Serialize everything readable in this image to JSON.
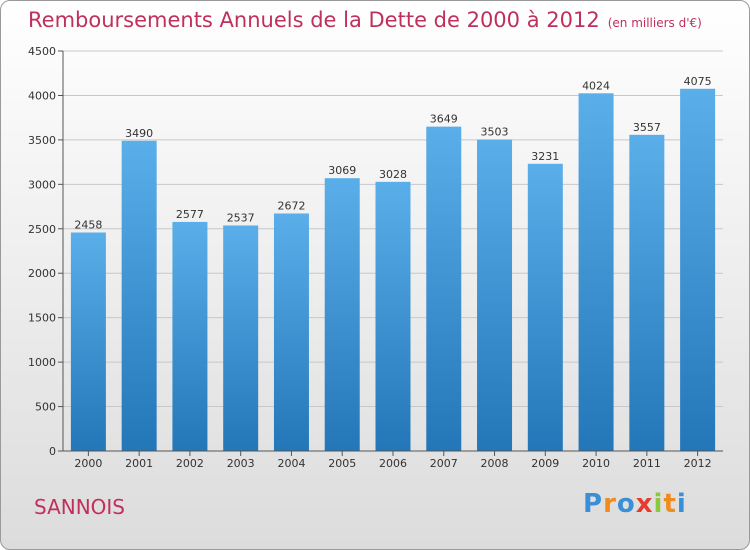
{
  "title": "Remboursements Annuels de la Dette de 2000 à 2012",
  "unit_note": "(en milliers d'€)",
  "city": "SANNOIS",
  "logo": {
    "text": "Proxiti"
  },
  "colors": {
    "bar_top": "#5aaee9",
    "bar_bottom": "#2377b8",
    "title": "#c0305c",
    "axis": "#333333"
  },
  "chart_data": {
    "type": "bar",
    "title": "Remboursements Annuels de la Dette de 2000 à 2012",
    "categories": [
      "2000",
      "2001",
      "2002",
      "2003",
      "2004",
      "2005",
      "2006",
      "2007",
      "2008",
      "2009",
      "2010",
      "2011",
      "2012"
    ],
    "values": [
      2458,
      3490,
      2577,
      2537,
      2672,
      3069,
      3028,
      3649,
      3503,
      3231,
      4024,
      3557,
      4075
    ],
    "value_labels": [
      "2458",
      "3490",
      "2577",
      "2537",
      "2672",
      "3069",
      "3028",
      "3649",
      "3503",
      "3231",
      "4024",
      "3557",
      "4075"
    ],
    "ylim": [
      0,
      4500
    ],
    "yticks": [
      0,
      500,
      1000,
      1500,
      2000,
      2500,
      3000,
      3500,
      4000,
      4500
    ],
    "ytick_labels": [
      "0",
      "500",
      "1000",
      "1500",
      "2000",
      "2500",
      "3000",
      "3500",
      "4000",
      "4500"
    ],
    "xlabel": "",
    "ylabel": ""
  }
}
